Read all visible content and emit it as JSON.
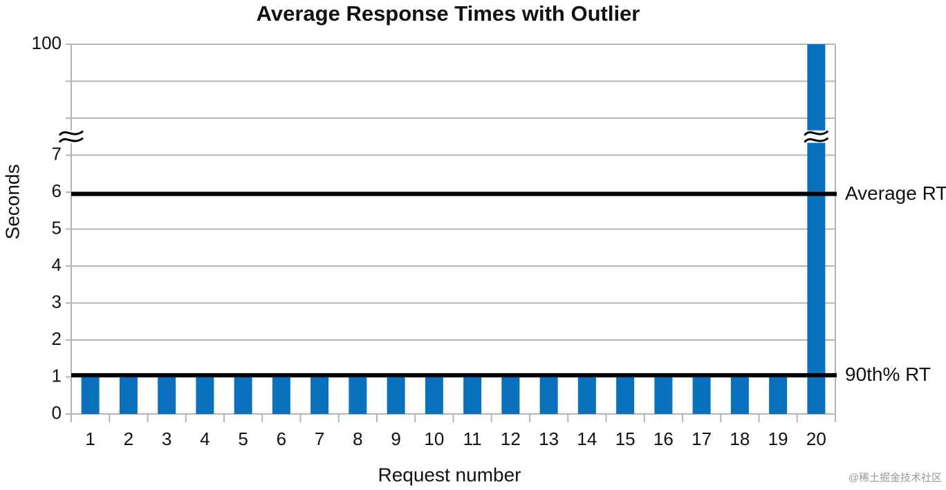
{
  "chart_data": {
    "type": "bar",
    "title": "Average Response Times with Outlier",
    "x_label": "Request number",
    "y_label": "Seconds",
    "categories": [
      "1",
      "2",
      "3",
      "4",
      "5",
      "6",
      "7",
      "8",
      "9",
      "10",
      "11",
      "12",
      "13",
      "14",
      "15",
      "16",
      "17",
      "18",
      "19",
      "20"
    ],
    "values": [
      1,
      1,
      1,
      1,
      1,
      1,
      1,
      1,
      1,
      1,
      1,
      1,
      1,
      1,
      1,
      1,
      1,
      1,
      1,
      100
    ],
    "color": "#0a72bd",
    "ylim": [
      0,
      100
    ],
    "ybreak": [
      7.5,
      97.5
    ],
    "yticks": [
      0,
      1,
      2,
      3,
      4,
      5,
      6,
      7,
      {
        "value": 98,
        "label": null
      },
      {
        "value": 99,
        "label": null
      },
      100
    ],
    "grid": true,
    "hlines": [
      {
        "label": "Average RT",
        "value": 5.95,
        "color": "#000000"
      },
      {
        "label": "90th% RT",
        "value": 1.05,
        "color": "#000000"
      }
    ],
    "watermark": "@稀土掘金技术社区"
  }
}
